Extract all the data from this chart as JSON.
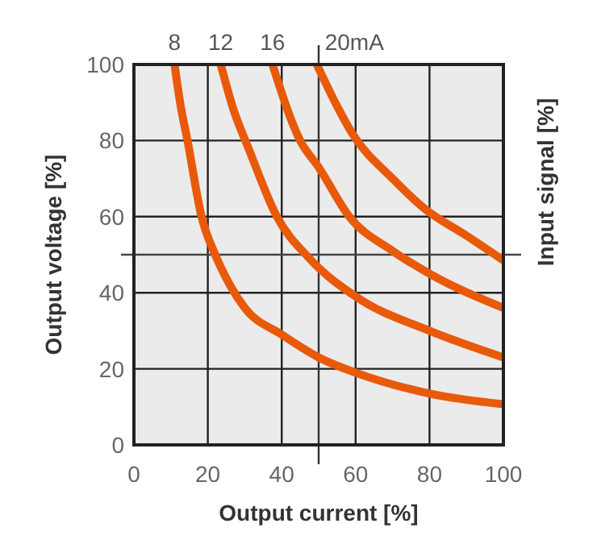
{
  "chart_data": {
    "type": "line",
    "xlabel": "Output current [%]",
    "ylabel": "Output voltage [%]",
    "y2label": "Input signal [%]",
    "xlim": [
      0,
      100
    ],
    "ylim": [
      0,
      100
    ],
    "xticks": [
      0,
      20,
      40,
      60,
      80,
      100
    ],
    "yticks": [
      0,
      20,
      40,
      60,
      80,
      100
    ],
    "grid": true,
    "line_style": "solid",
    "marker": "none",
    "series": [
      {
        "color": "#e85a0a",
        "x": [
          11,
          12.5,
          14.5,
          18.3,
          22,
          26,
          30,
          40,
          50,
          60,
          80,
          100
        ],
        "values": [
          100,
          90,
          80,
          60,
          50,
          42,
          36,
          29,
          23,
          19,
          13.5,
          10.7
        ]
      },
      {
        "color": "#e85a0a",
        "x": [
          23.5,
          27,
          31,
          38.7,
          47.5,
          60,
          80,
          100
        ],
        "values": [
          100,
          88,
          78,
          60,
          49,
          39,
          30,
          23
        ]
      },
      {
        "color": "#e85a0a",
        "x": [
          37.5,
          45,
          50,
          58.3,
          70,
          80,
          100
        ],
        "values": [
          100,
          80,
          73,
          60,
          51,
          45,
          36
        ]
      },
      {
        "color": "#e85a0a",
        "x": [
          49.5,
          55,
          59,
          70,
          78.8,
          90,
          100
        ],
        "values": [
          100,
          89,
          82,
          70,
          62,
          55,
          48.5
        ]
      }
    ],
    "ref_lines": [
      {
        "axis": "x",
        "value": 50,
        "color": "#333333"
      },
      {
        "axis": "y",
        "value": 50,
        "color": "#444444"
      }
    ],
    "annotations": [
      {
        "text": "8",
        "x": 11,
        "y": 100
      },
      {
        "text": "12",
        "x": 23.5,
        "y": 100
      },
      {
        "text": "16",
        "x": 37.5,
        "y": 100
      },
      {
        "text": "20mA",
        "x": 49.5,
        "y": 100
      }
    ]
  }
}
